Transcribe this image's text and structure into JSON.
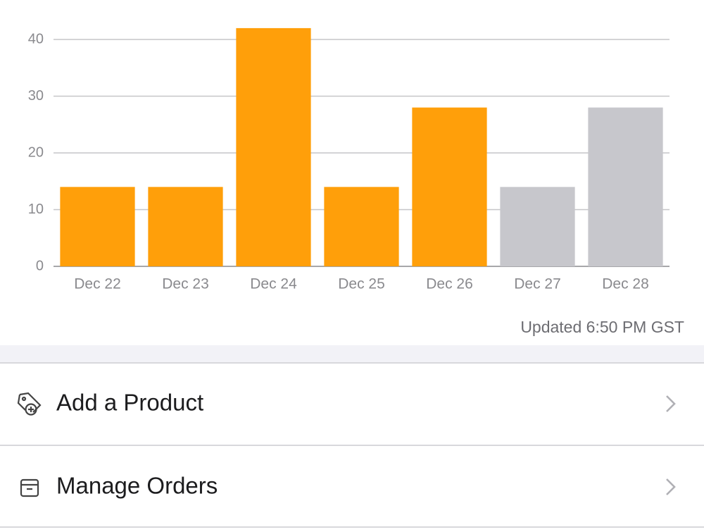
{
  "chart_data": {
    "type": "bar",
    "categories": [
      "Dec 22",
      "Dec 23",
      "Dec 24",
      "Dec 25",
      "Dec 26",
      "Dec 27",
      "Dec 28"
    ],
    "values": [
      14,
      14,
      42,
      14,
      28,
      14,
      28
    ],
    "colors": [
      "#ff9f0a",
      "#ff9f0a",
      "#ff9f0a",
      "#ff9f0a",
      "#ff9f0a",
      "#c7c7cc",
      "#c7c7cc"
    ],
    "ylim": [
      0,
      45
    ],
    "yticks": [
      0,
      10,
      20,
      30,
      40
    ],
    "grid": true
  },
  "status": "Updated 6:50 PM GST",
  "menu": [
    {
      "label": "Add a Product"
    },
    {
      "label": "Manage Orders"
    }
  ]
}
